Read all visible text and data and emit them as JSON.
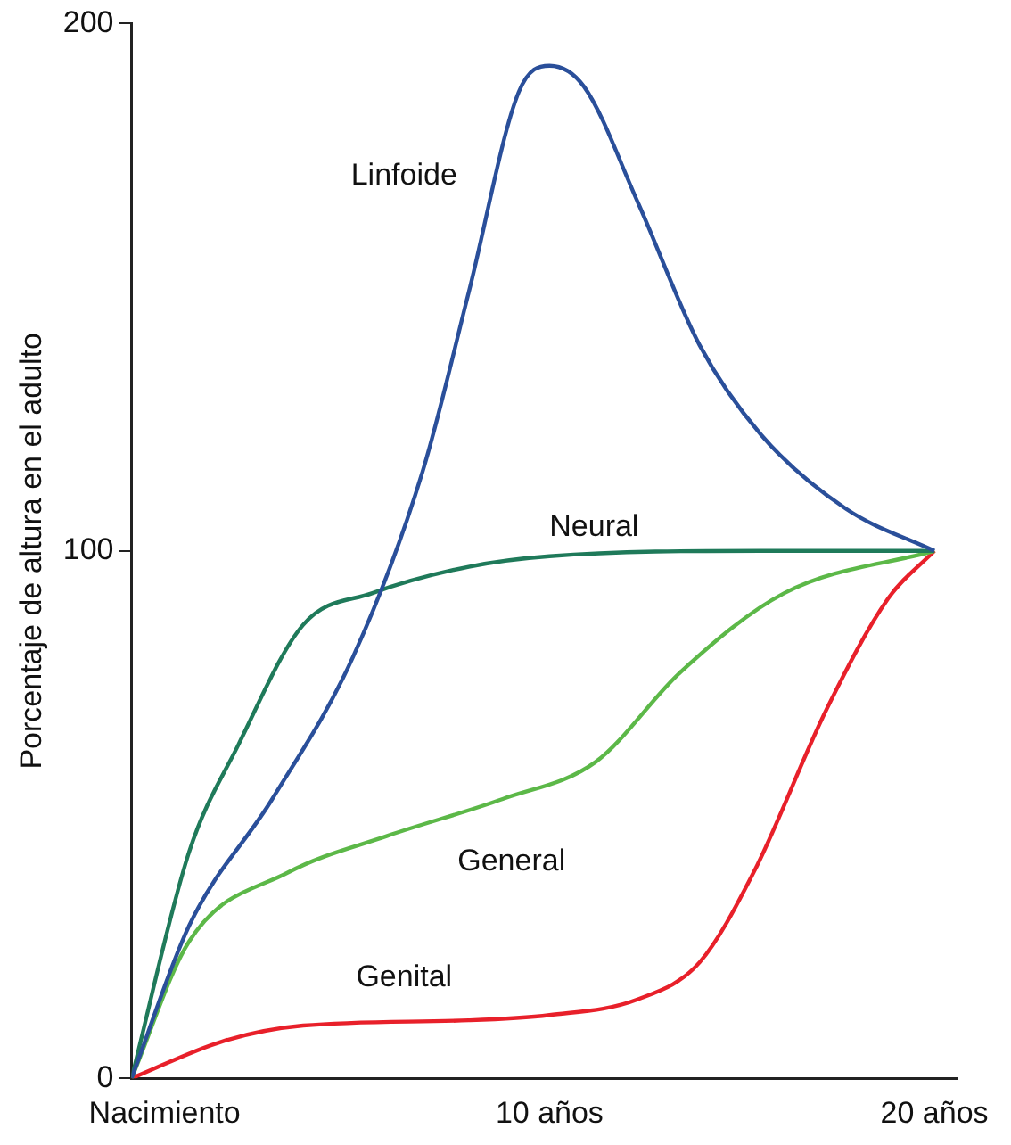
{
  "chart_data": {
    "type": "line",
    "ylabel": "Porcentaje de altura en el adulto",
    "xlim": [
      -0.86,
      20.6
    ],
    "xticks": [
      {
        "value": 0,
        "label": "Nacimiento"
      },
      {
        "value": 10,
        "label": "10 años"
      },
      {
        "value": 20,
        "label": "20 años"
      }
    ],
    "ylim": [
      0,
      200
    ],
    "yticks": [
      0,
      100,
      200
    ],
    "grid": false,
    "legend": false,
    "marker": "none",
    "line_style": "solid",
    "series": [
      {
        "name": "Linfoide",
        "color": "#2a4f9a",
        "x": [
          -0.86,
          0.64,
          2.8,
          4.9,
          6.7,
          7.9,
          9.2,
          10,
          10.9,
          12.3,
          13.9,
          15.5,
          17.7,
          20
        ],
        "values": [
          0,
          29,
          53,
          80,
          115,
          149,
          187,
          192,
          188,
          166,
          139,
          122,
          108,
          100
        ]
      },
      {
        "name": "Neural",
        "color": "#1f7a5a",
        "x": [
          -0.86,
          0.64,
          1.9,
          3.6,
          5.4,
          7.9,
          10,
          15.5,
          20
        ],
        "values": [
          0,
          43,
          63,
          86,
          92,
          97,
          99,
          100,
          100
        ]
      },
      {
        "name": "General",
        "color": "#5cb848",
        "x": [
          -0.86,
          0.64,
          3.2,
          5.8,
          8.8,
          11.2,
          13.4,
          16.1,
          20
        ],
        "values": [
          0,
          26,
          39,
          46,
          53,
          60,
          77,
          92,
          100
        ]
      },
      {
        "name": "Genital",
        "color": "#e8202a",
        "x": [
          -0.86,
          1.5,
          3.6,
          7.9,
          10,
          12.3,
          13.9,
          15.3,
          17.2,
          18.8,
          20
        ],
        "values": [
          0,
          7,
          10,
          11,
          12,
          15,
          22,
          39,
          70,
          91,
          100
        ]
      }
    ]
  }
}
